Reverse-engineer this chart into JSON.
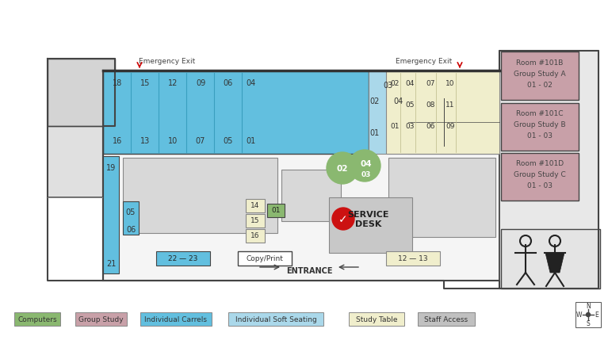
{
  "bg": "#ffffff",
  "wall_fill": "#e8e8e8",
  "wall_lbump_fill": "#d8d8d8",
  "floor_fill": "#f0f0f0",
  "blue_carrel": "#62bfdf",
  "lt_blue_carrel": "#aad8ea",
  "study_table": "#f0eecc",
  "group_study": "#c8a0a8",
  "computer": "#8ab870",
  "staff": "#c0c0c0",
  "service_gray": "#c8c8c8",
  "medium_gray": "#d0d0d0",
  "dark_edge": "#444444",
  "thin_edge": "#888888",
  "room_labels": [
    [
      "Room #101B",
      "Group Study A",
      "01 - 02"
    ],
    [
      "Room #101C",
      "Group Study B",
      "01 - 03"
    ],
    [
      "Room #101D",
      "Group Study C",
      "01 - 03"
    ]
  ],
  "carrel_top_row1": [
    "18",
    "15",
    "12",
    "09",
    "06",
    "04"
  ],
  "carrel_top_row2": [
    "16",
    "13",
    "10",
    "07",
    "05",
    "01"
  ],
  "soft_seat_labels": [
    "03",
    "02",
    "04",
    "01"
  ],
  "study_grid": [
    [
      "02",
      "04",
      "07",
      "10"
    ],
    [
      "",
      "05",
      "08",
      "11"
    ],
    [
      "01",
      "03",
      "06",
      "09"
    ]
  ],
  "legend_items": [
    {
      "label": "Computers",
      "color": "#8ab870"
    },
    {
      "label": "Group Study",
      "color": "#c8a0a8"
    },
    {
      "label": "Individual Carrels",
      "color": "#62bfdf"
    },
    {
      "label": "Individual Soft Seating",
      "color": "#aad8ea"
    },
    {
      "label": "Study Table",
      "color": "#f0eecc"
    },
    {
      "label": "Staff Access",
      "color": "#c0c0c0"
    }
  ]
}
